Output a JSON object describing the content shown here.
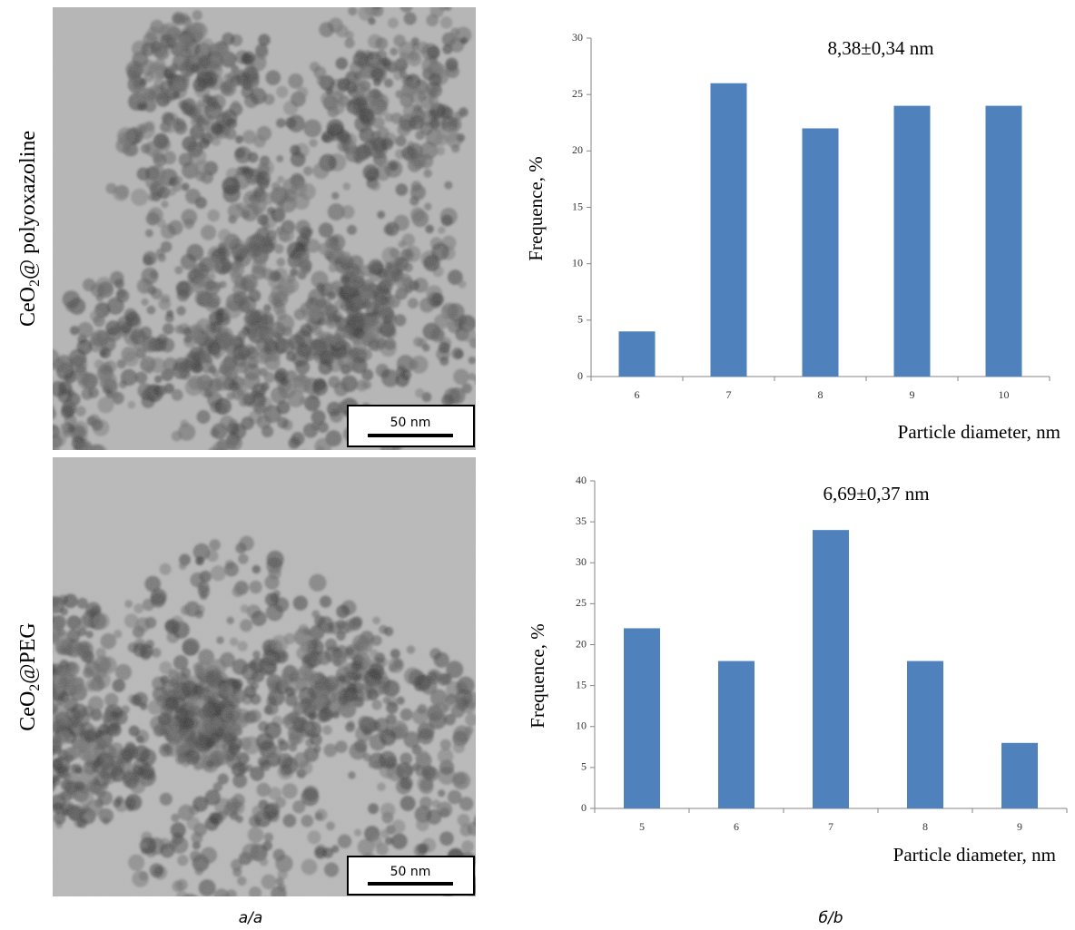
{
  "panels": {
    "top_label": {
      "base": "CeO",
      "sub": "2",
      "rest": "@ polyoxazoline"
    },
    "bottom_label": {
      "base": "CeO",
      "sub": "2",
      "rest": "@PEG"
    },
    "scale_bar_top": "50 nm",
    "scale_bar_bottom": "50 nm"
  },
  "captions": [
    "а/a",
    "б/b"
  ],
  "chart_data": [
    {
      "type": "bar",
      "annotation": "8,38±0,34 nm",
      "x_label": "Particle diameter, nm",
      "y_label": "Frequence, %",
      "categories": [
        "6",
        "7",
        "8",
        "9",
        "10"
      ],
      "values": [
        4,
        26,
        22,
        24,
        24
      ],
      "color": "#4f81bd",
      "ylim": [
        0,
        30
      ],
      "yticks": [
        0,
        5,
        10,
        15,
        20,
        25,
        30
      ]
    },
    {
      "type": "bar",
      "annotation": "6,69±0,37 nm",
      "x_label": "Particle diameter, nm",
      "y_label": "Frequence, %",
      "categories": [
        "5",
        "6",
        "7",
        "8",
        "9"
      ],
      "values": [
        22,
        18,
        34,
        18,
        8
      ],
      "color": "#4f81bd",
      "ylim": [
        0,
        40
      ],
      "yticks": [
        0,
        5,
        10,
        15,
        20,
        25,
        30,
        35,
        40
      ]
    }
  ]
}
